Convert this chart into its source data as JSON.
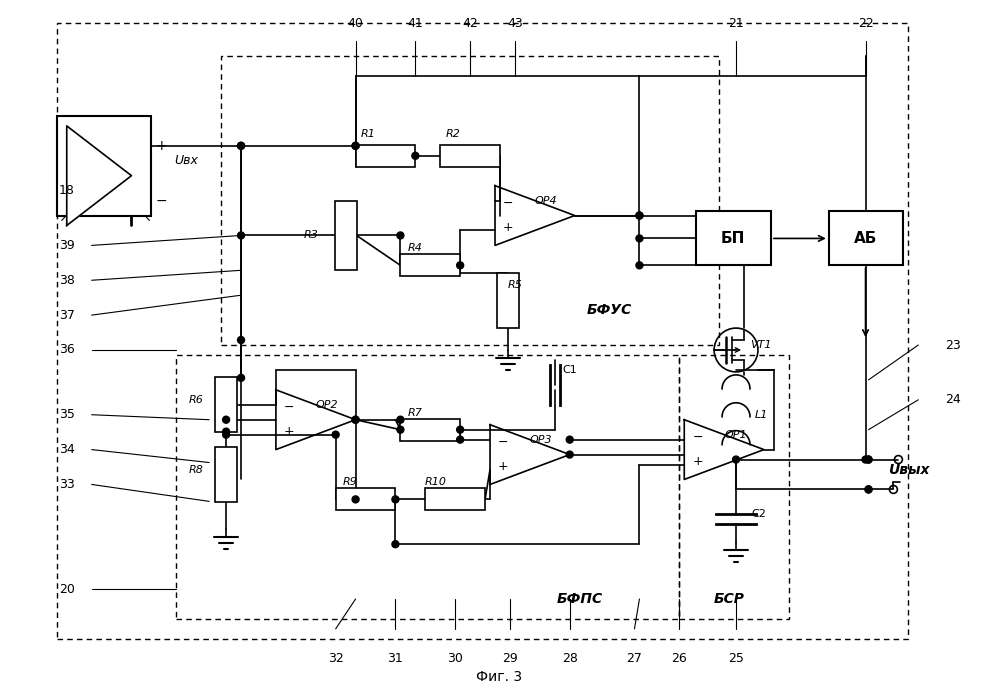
{
  "title": "Фиг. 3",
  "bg_color": "#ffffff",
  "line_color": "#000000",
  "fig_width": 9.99,
  "fig_height": 6.93,
  "label_Ubx": "Uвх",
  "label_Uvyx": "Uвых",
  "label_BFUS": "БФУС",
  "label_BFPS": "БФПС",
  "label_BSR": "БСР",
  "label_BP": "БП",
  "label_AB": "АБ",
  "label_VT1": "VT1",
  "label_L1": "L1",
  "label_C1": "C1",
  "label_C2": "C2",
  "label_R1": "R1",
  "label_R2": "R2",
  "label_R3": "R3",
  "label_R4": "R4",
  "label_R5": "R5",
  "label_R6": "R6",
  "label_R7": "R7",
  "label_R8": "R8",
  "label_R9": "R9",
  "label_R10": "R10",
  "label_OP1": "OP1",
  "label_OP2": "OP2",
  "label_OP3": "OP3",
  "label_OP4": "OP4"
}
